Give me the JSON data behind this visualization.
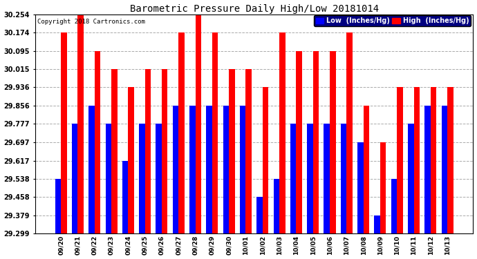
{
  "title": "Barometric Pressure Daily High/Low 20181014",
  "copyright": "Copyright 2018 Cartronics.com",
  "legend_low": "Low  (Inches/Hg)",
  "legend_high": "High  (Inches/Hg)",
  "low_color": "#0000ff",
  "high_color": "#ff0000",
  "legend_bg": "#000080",
  "background_color": "#ffffff",
  "grid_color": "#aaaaaa",
  "ylim": [
    29.299,
    30.254
  ],
  "yticks": [
    29.299,
    29.379,
    29.458,
    29.538,
    29.617,
    29.697,
    29.777,
    29.856,
    29.936,
    30.015,
    30.095,
    30.174,
    30.254
  ],
  "categories": [
    "09/20",
    "09/21",
    "09/22",
    "09/23",
    "09/24",
    "09/25",
    "09/26",
    "09/27",
    "09/28",
    "09/29",
    "09/30",
    "10/01",
    "10/02",
    "10/03",
    "10/04",
    "10/05",
    "10/06",
    "10/07",
    "10/08",
    "10/09",
    "10/10",
    "10/11",
    "10/12",
    "10/13"
  ],
  "high_values": [
    30.174,
    30.254,
    30.095,
    30.015,
    29.936,
    30.015,
    30.015,
    30.174,
    30.254,
    30.174,
    30.015,
    30.015,
    29.936,
    30.174,
    30.095,
    30.095,
    30.095,
    30.174,
    29.856,
    29.697,
    29.936,
    29.936,
    29.936,
    29.936
  ],
  "low_values": [
    29.538,
    29.777,
    29.856,
    29.777,
    29.617,
    29.777,
    29.777,
    29.856,
    29.856,
    29.856,
    29.856,
    29.856,
    29.458,
    29.538,
    29.777,
    29.777,
    29.777,
    29.777,
    29.697,
    29.379,
    29.538,
    29.777,
    29.856,
    29.856
  ],
  "bar_bottom": 29.299,
  "bar_width": 0.35,
  "figsize": [
    6.9,
    3.75
  ],
  "dpi": 100
}
